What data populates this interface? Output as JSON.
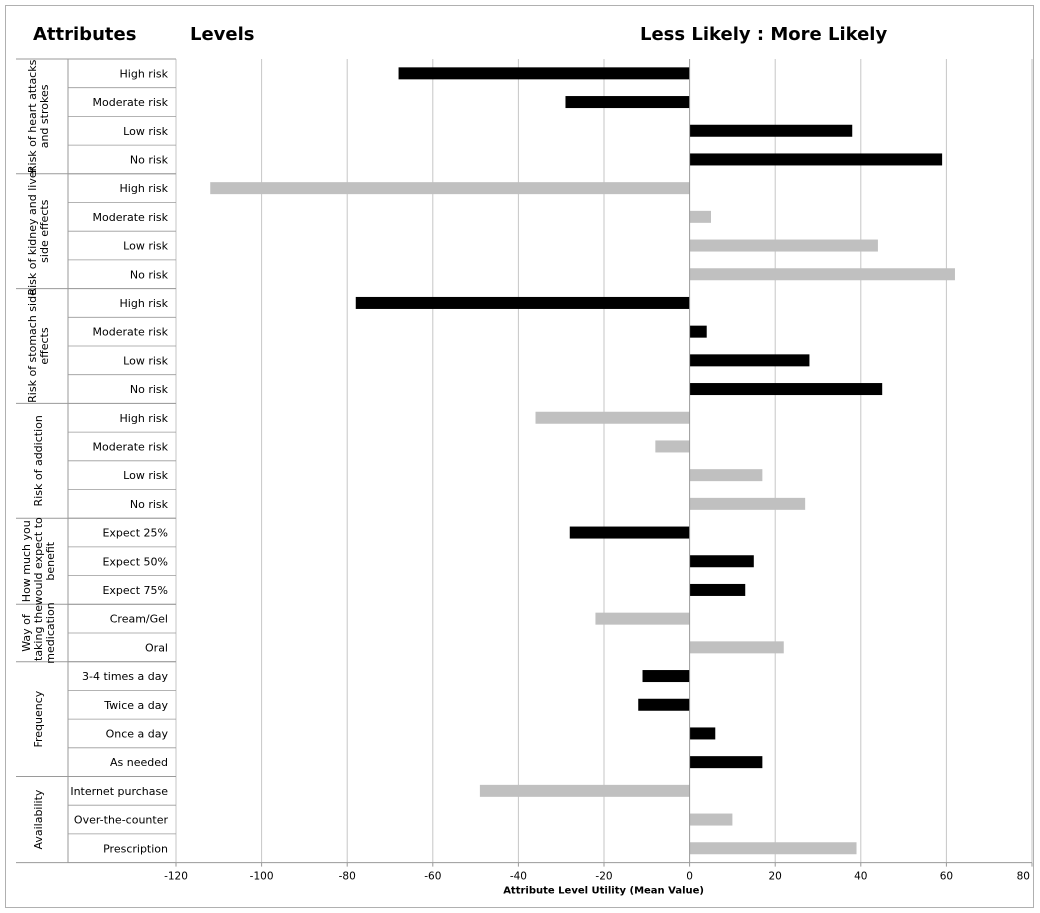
{
  "headers": {
    "attributes": "Attributes",
    "levels": "Levels",
    "likelihood": "Less Likely : More Likely"
  },
  "colors": {
    "dark": "#000000",
    "light": "#c0c0c0",
    "grid": "#c6c6c6",
    "axis": "#9a9a9a"
  },
  "chart_data": {
    "type": "bar",
    "orientation": "horizontal",
    "xlabel": "Attribute Level Utility (Mean Value)",
    "xlim": [
      -120,
      80
    ],
    "xticks": [
      -120,
      -100,
      -80,
      -60,
      -40,
      -20,
      0,
      20,
      40,
      60,
      80
    ],
    "grid": true,
    "groups": [
      {
        "name": "Risk of heart attacks and strokes",
        "name_lines": [
          "Risk of heart attacks",
          "and strokes"
        ],
        "color": "dark",
        "levels": [
          "High risk",
          "Moderate risk",
          "Low risk",
          "No risk"
        ],
        "values": [
          -68,
          -29,
          38,
          59
        ]
      },
      {
        "name": "Risk of kidney and liver side effects",
        "name_lines": [
          "Risk of kidney and liver",
          "side effects"
        ],
        "color": "light",
        "levels": [
          "High risk",
          "Moderate risk",
          "Low risk",
          "No risk"
        ],
        "values": [
          -112,
          5,
          44,
          62
        ]
      },
      {
        "name": "Risk of stomach side effects",
        "name_lines": [
          "Risk of stomach side",
          "effects"
        ],
        "color": "dark",
        "levels": [
          "High risk",
          "Moderate risk",
          "Low risk",
          "No risk"
        ],
        "values": [
          -78,
          4,
          28,
          45
        ]
      },
      {
        "name": "Risk of addiction",
        "name_lines": [
          "Risk of addiction"
        ],
        "color": "light",
        "levels": [
          "High risk",
          "Moderate risk",
          "Low risk",
          "No risk"
        ],
        "values": [
          -36,
          -8,
          17,
          27
        ]
      },
      {
        "name": "How much you would expect to benefit",
        "name_lines": [
          "How much you",
          "would expect to",
          "benefit"
        ],
        "color": "dark",
        "levels": [
          "Expect 25%",
          "Expect 50%",
          "Expect 75%"
        ],
        "values": [
          -28,
          15,
          13
        ]
      },
      {
        "name": "Way of taking the medication",
        "name_lines": [
          "Way of",
          "taking the",
          "medication"
        ],
        "color": "light",
        "levels": [
          "Cream/Gel",
          "Oral"
        ],
        "values": [
          -22,
          22
        ]
      },
      {
        "name": "Frequency",
        "name_lines": [
          "Frequency"
        ],
        "color": "dark",
        "levels": [
          "3-4 times a day",
          "Twice a day",
          "Once a day",
          "As needed"
        ],
        "values": [
          -11,
          -12,
          6,
          17
        ]
      },
      {
        "name": "Availability",
        "name_lines": [
          "Availability"
        ],
        "color": "light",
        "levels": [
          "Internet purchase",
          "Over-the-counter",
          "Prescription"
        ],
        "values": [
          -49,
          10,
          39
        ]
      }
    ]
  }
}
